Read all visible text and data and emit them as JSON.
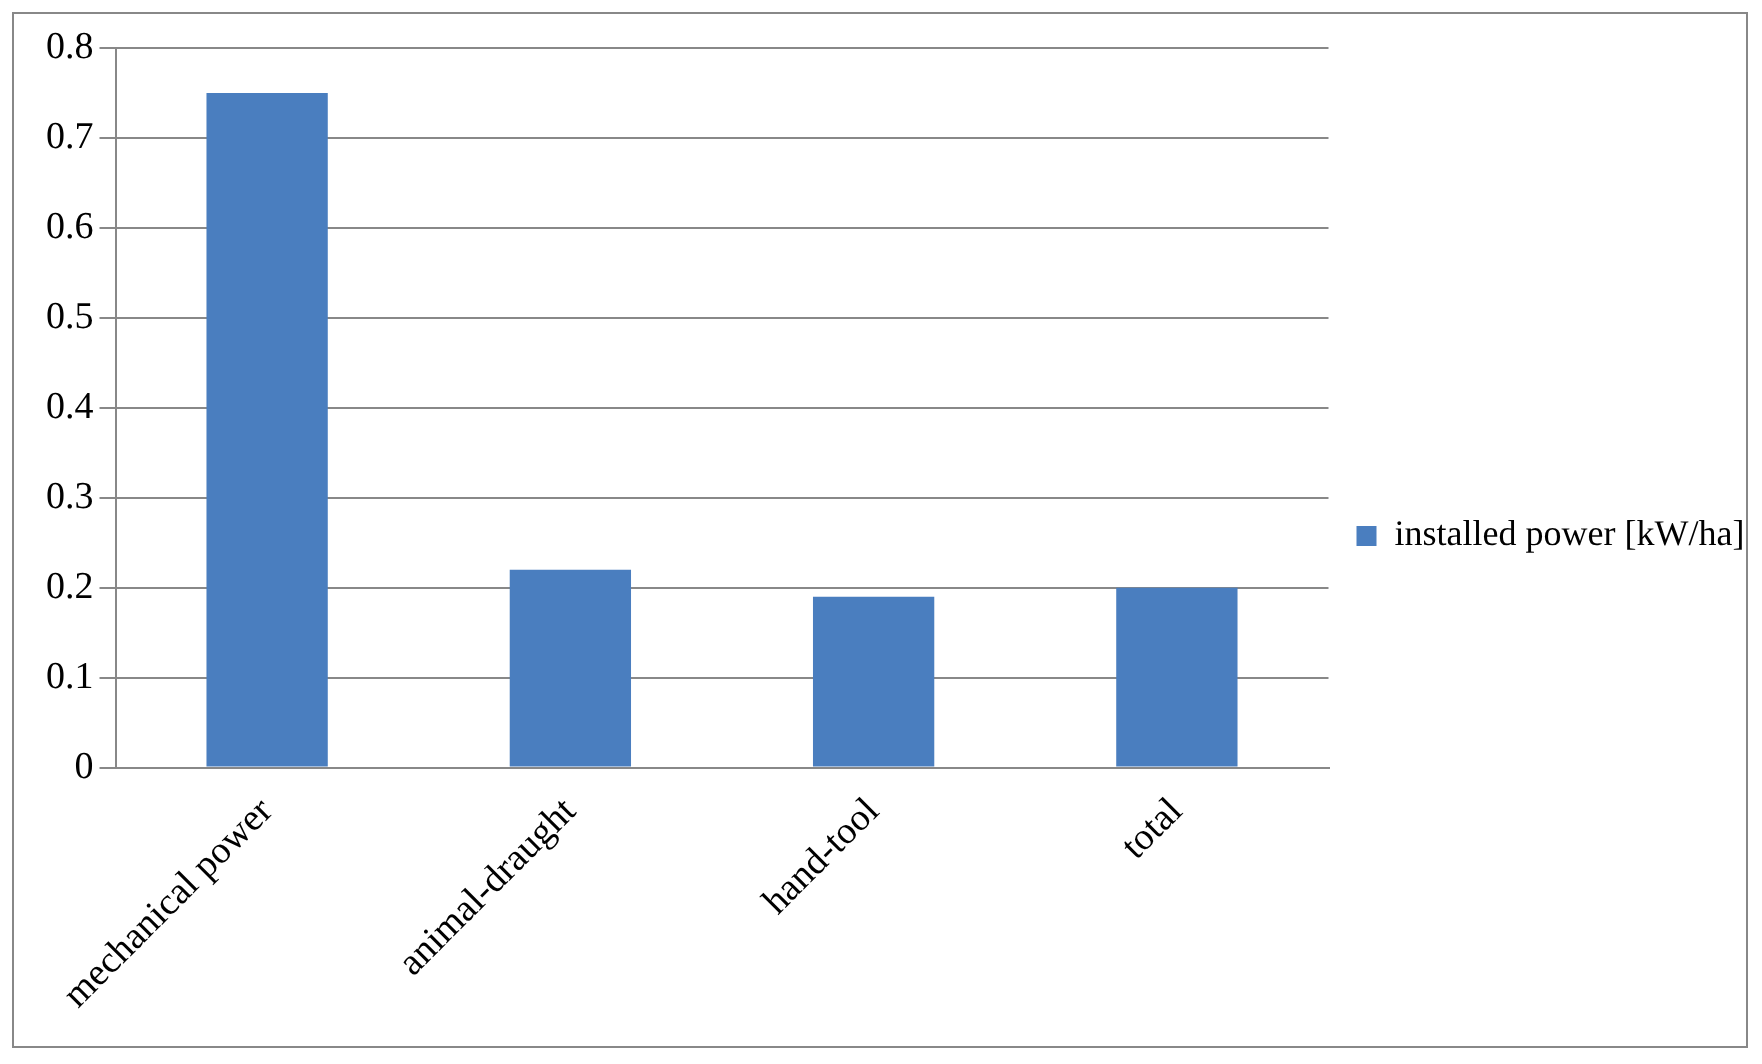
{
  "chart_data": {
    "type": "bar",
    "categories": [
      "mechanical power",
      "animal-draught",
      "hand-tool",
      "total"
    ],
    "series": [
      {
        "name": "installed power [kW/ha]",
        "color": "#4a7ebf",
        "values": [
          0.75,
          0.22,
          0.19,
          0.2
        ]
      }
    ],
    "ylim": [
      0,
      0.8
    ],
    "yticks": [
      0,
      0.1,
      0.2,
      0.3,
      0.4,
      0.5,
      0.6,
      0.7,
      0.8
    ],
    "grid": "y",
    "legend": "right"
  }
}
